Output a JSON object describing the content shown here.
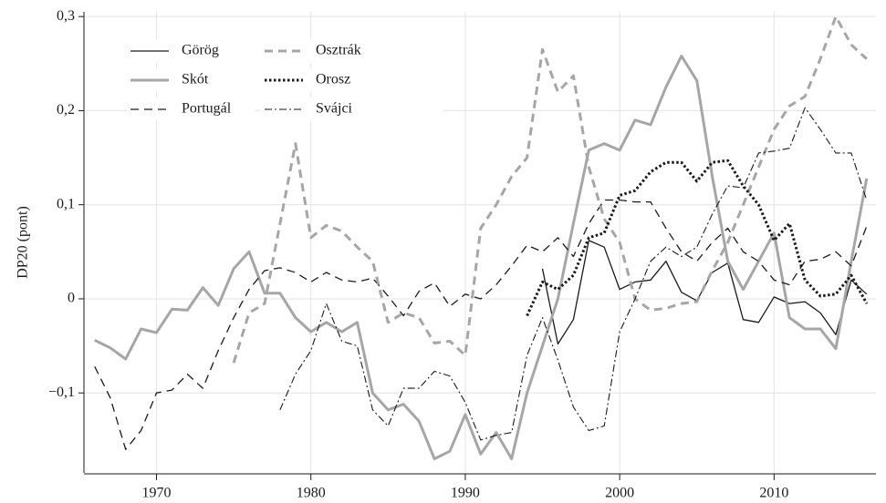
{
  "chart_data": {
    "type": "line",
    "ylabel": "DP20 (pont)",
    "x": [
      1966,
      1967,
      1968,
      1969,
      1970,
      1971,
      1972,
      1973,
      1974,
      1975,
      1976,
      1977,
      1978,
      1979,
      1980,
      1981,
      1982,
      1983,
      1984,
      1985,
      1986,
      1987,
      1988,
      1989,
      1990,
      1991,
      1992,
      1993,
      1994,
      1995,
      1996,
      1997,
      1998,
      1999,
      2000,
      2001,
      2002,
      2003,
      2004,
      2005,
      2006,
      2007,
      2008,
      2009,
      2010,
      2011,
      2012,
      2013,
      2014,
      2015,
      2016
    ],
    "xlim": [
      1965.3,
      2016.6
    ],
    "xticks": [
      1970,
      1980,
      1990,
      2000,
      2010
    ],
    "ylim": [
      -0.185,
      0.305
    ],
    "yticks": [
      {
        "value": -0.1,
        "label": "−0,1"
      },
      0,
      {
        "value": 0.1,
        "label": "0,1"
      },
      {
        "value": 0.2,
        "label": "0,2"
      },
      {
        "value": 0.3,
        "label": "0,3"
      }
    ],
    "grid": true,
    "legend": "upper left",
    "series": [
      {
        "name": "Görög",
        "color": "#1a1a1a",
        "dash": "solid",
        "width": 1.3,
        "values": [
          null,
          null,
          null,
          null,
          null,
          null,
          null,
          null,
          null,
          null,
          null,
          null,
          null,
          null,
          null,
          null,
          null,
          null,
          null,
          null,
          null,
          null,
          null,
          null,
          null,
          null,
          null,
          null,
          null,
          0.032,
          -0.048,
          -0.022,
          0.062,
          0.055,
          0.01,
          0.018,
          0.02,
          0.04,
          0.007,
          -0.002,
          0.028,
          0.038,
          -0.022,
          -0.025,
          0.002,
          -0.005,
          -0.003,
          -0.015,
          -0.038,
          0.02,
          0.005
        ]
      },
      {
        "name": "Skót",
        "color": "#a6a6a6",
        "dash": "solid",
        "width": 3,
        "values": [
          -0.044,
          -0.052,
          -0.064,
          -0.032,
          -0.036,
          -0.011,
          -0.012,
          0.012,
          -0.007,
          0.032,
          0.05,
          0.006,
          0.006,
          -0.02,
          -0.035,
          -0.025,
          -0.035,
          -0.025,
          -0.1,
          -0.118,
          -0.112,
          -0.13,
          -0.17,
          -0.162,
          -0.123,
          -0.165,
          -0.142,
          -0.17,
          -0.1,
          -0.05,
          0.0,
          0.08,
          0.158,
          0.165,
          0.158,
          0.19,
          0.185,
          0.225,
          0.258,
          0.232,
          0.13,
          0.04,
          0.01,
          0.04,
          0.07,
          -0.02,
          -0.032,
          -0.032,
          -0.053,
          0.04,
          0.128
        ]
      },
      {
        "name": "Portugál",
        "color": "#1a1a1a",
        "dash": "dashed",
        "width": 1.3,
        "values": [
          -0.072,
          -0.105,
          -0.16,
          -0.14,
          -0.1,
          -0.097,
          -0.08,
          -0.095,
          -0.055,
          -0.02,
          0.01,
          0.03,
          0.033,
          0.028,
          0.018,
          0.028,
          0.02,
          0.018,
          0.022,
          0.003,
          -0.018,
          0.008,
          0.017,
          -0.008,
          0.005,
          0.0,
          0.015,
          0.035,
          0.057,
          0.05,
          0.065,
          0.045,
          0.08,
          0.105,
          0.105,
          0.103,
          0.103,
          0.075,
          0.05,
          0.04,
          0.06,
          0.075,
          0.05,
          0.04,
          0.02,
          0.015,
          0.04,
          0.042,
          0.05,
          0.035,
          0.077
        ]
      },
      {
        "name": "Osztrák",
        "color": "#a6a6a6",
        "dash": "dashed",
        "width": 3,
        "values": [
          null,
          null,
          null,
          null,
          null,
          null,
          null,
          null,
          null,
          -0.068,
          -0.015,
          -0.005,
          0.08,
          0.165,
          0.065,
          0.078,
          0.072,
          0.055,
          0.04,
          -0.025,
          -0.015,
          -0.02,
          -0.047,
          -0.045,
          -0.06,
          0.075,
          0.1,
          0.13,
          0.15,
          0.265,
          0.22,
          0.237,
          0.14,
          0.085,
          0.06,
          0.0,
          -0.012,
          -0.01,
          -0.005,
          -0.003,
          0.03,
          0.06,
          0.1,
          0.14,
          0.18,
          0.205,
          0.215,
          0.255,
          0.3,
          0.27,
          0.255
        ]
      },
      {
        "name": "Orosz",
        "color": "#1a1a1a",
        "dash": "dotted",
        "width": 3,
        "values": [
          null,
          null,
          null,
          null,
          null,
          null,
          null,
          null,
          null,
          null,
          null,
          null,
          null,
          null,
          null,
          null,
          null,
          null,
          null,
          null,
          null,
          null,
          null,
          null,
          null,
          null,
          null,
          null,
          -0.018,
          0.018,
          0.01,
          0.025,
          0.065,
          0.07,
          0.11,
          0.115,
          0.135,
          0.145,
          0.145,
          0.125,
          0.145,
          0.147,
          0.12,
          0.1,
          0.062,
          0.08,
          0.02,
          0.003,
          0.005,
          0.025,
          -0.005
        ]
      },
      {
        "name": "Svájci",
        "color": "#1a1a1a",
        "dash": "dashdot",
        "width": 1.1,
        "values": [
          null,
          null,
          null,
          null,
          null,
          null,
          null,
          null,
          null,
          null,
          null,
          null,
          -0.118,
          -0.08,
          -0.055,
          -0.005,
          -0.045,
          -0.05,
          -0.118,
          -0.135,
          -0.095,
          -0.095,
          -0.077,
          -0.082,
          -0.11,
          -0.15,
          -0.145,
          -0.142,
          -0.06,
          -0.02,
          -0.065,
          -0.115,
          -0.14,
          -0.135,
          -0.035,
          0.0,
          0.04,
          0.055,
          0.045,
          0.055,
          0.09,
          0.12,
          0.118,
          0.155,
          0.157,
          0.16,
          0.203,
          0.18,
          0.155,
          0.155,
          0.105
        ]
      }
    ]
  }
}
